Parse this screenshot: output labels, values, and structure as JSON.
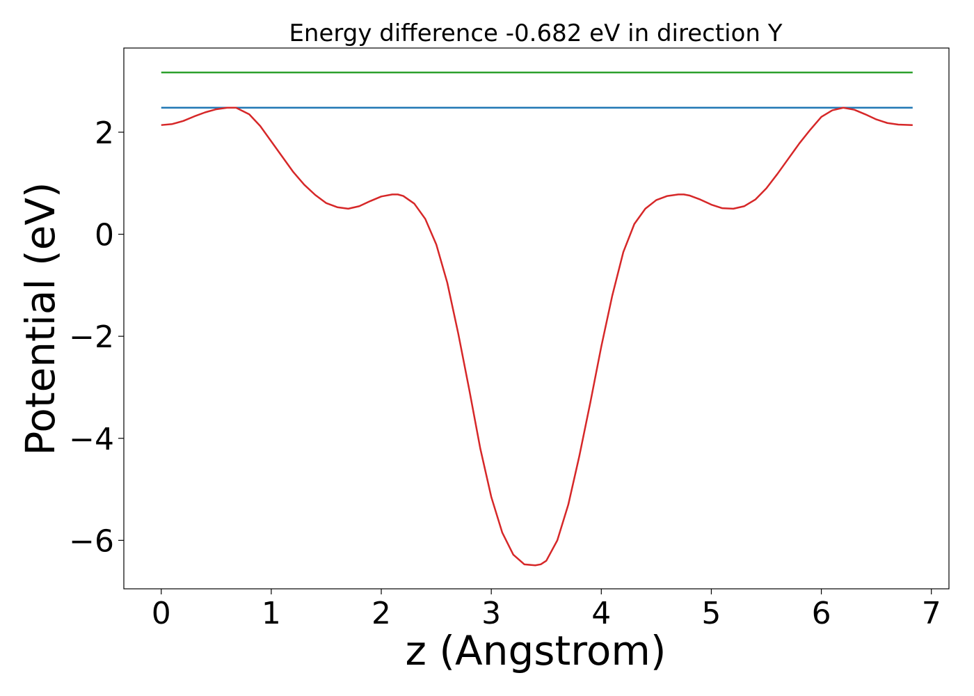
{
  "chart_data": {
    "type": "line",
    "title": "Energy difference -0.682 eV in direction Y",
    "xlabel": "z (Angstrom)",
    "ylabel": "Potential (eV)",
    "xlim": [
      -0.34,
      7.16
    ],
    "ylim": [
      -6.95,
      3.65
    ],
    "xticks": [
      0,
      1,
      2,
      3,
      4,
      5,
      6,
      7
    ],
    "xtick_labels": [
      "0",
      "1",
      "2",
      "3",
      "4",
      "5",
      "6",
      "7"
    ],
    "yticks": [
      -6,
      -4,
      -2,
      0,
      2
    ],
    "ytick_labels": [
      "−6",
      "−4",
      "−2",
      "0",
      "2"
    ],
    "grid": false,
    "series": [
      {
        "color": "#2ca02c",
        "x": [
          0,
          6.83
        ],
        "y": [
          3.17,
          3.17
        ]
      },
      {
        "color": "#1f77b4",
        "x": [
          0,
          6.83
        ],
        "y": [
          2.48,
          2.48
        ]
      },
      {
        "color": "#d62728",
        "x": [
          0,
          0.1,
          0.2,
          0.3,
          0.4,
          0.5,
          0.6,
          0.68,
          0.8,
          0.9,
          1.0,
          1.1,
          1.2,
          1.3,
          1.4,
          1.5,
          1.6,
          1.7,
          1.8,
          1.9,
          2.0,
          2.1,
          2.15,
          2.2,
          2.3,
          2.4,
          2.5,
          2.6,
          2.7,
          2.8,
          2.9,
          3.0,
          3.1,
          3.2,
          3.3,
          3.4,
          3.45,
          3.5,
          3.6,
          3.7,
          3.8,
          3.9,
          4.0,
          4.1,
          4.2,
          4.3,
          4.4,
          4.5,
          4.6,
          4.7,
          4.75,
          4.8,
          4.9,
          5.0,
          5.1,
          5.2,
          5.3,
          5.4,
          5.5,
          5.6,
          5.7,
          5.8,
          5.9,
          6.0,
          6.1,
          6.2,
          6.3,
          6.4,
          6.5,
          6.6,
          6.7,
          6.83
        ],
        "y": [
          2.14,
          2.16,
          2.22,
          2.31,
          2.39,
          2.45,
          2.48,
          2.48,
          2.35,
          2.12,
          1.82,
          1.52,
          1.22,
          0.97,
          0.77,
          0.61,
          0.53,
          0.5,
          0.55,
          0.65,
          0.74,
          0.78,
          0.78,
          0.75,
          0.6,
          0.3,
          -0.2,
          -0.95,
          -1.95,
          -3.05,
          -4.2,
          -5.15,
          -5.85,
          -6.28,
          -6.47,
          -6.49,
          -6.47,
          -6.4,
          -6.0,
          -5.3,
          -4.35,
          -3.3,
          -2.2,
          -1.2,
          -0.35,
          0.2,
          0.5,
          0.67,
          0.75,
          0.78,
          0.78,
          0.76,
          0.68,
          0.58,
          0.51,
          0.5,
          0.55,
          0.68,
          0.9,
          1.18,
          1.48,
          1.78,
          2.05,
          2.3,
          2.43,
          2.48,
          2.44,
          2.35,
          2.25,
          2.18,
          2.15,
          2.14
        ]
      }
    ]
  }
}
